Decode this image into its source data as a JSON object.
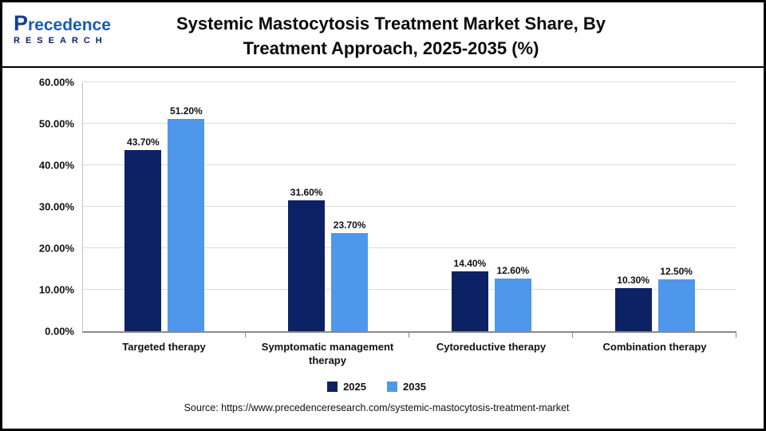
{
  "logo": {
    "name": "Precedence",
    "subtitle": "RESEARCH"
  },
  "header": {
    "title": "Systemic Mastocytosis Treatment Market Share, By Treatment Approach, 2025-2035 (%)"
  },
  "chart_data": {
    "type": "bar",
    "title": "Systemic Mastocytosis Treatment Market Share, By Treatment Approach, 2025-2035 (%)",
    "categories": [
      "Targeted therapy",
      "Symptomatic management therapy",
      "Cytoreductive therapy",
      "Combination therapy"
    ],
    "series": [
      {
        "name": "2025",
        "color": "#0d2264",
        "values": [
          43.7,
          31.6,
          14.4,
          10.3
        ]
      },
      {
        "name": "2035",
        "color": "#4f97ea",
        "values": [
          51.2,
          23.7,
          12.6,
          12.5
        ]
      }
    ],
    "xlabel": "",
    "ylabel": "",
    "ylim": [
      0,
      60
    ],
    "y_ticks": [
      "0.00%",
      "10.00%",
      "20.00%",
      "30.00%",
      "40.00%",
      "50.00%",
      "60.00%"
    ],
    "grid": true,
    "legend_position": "bottom",
    "value_label_format": "0.00%"
  },
  "footer": {
    "source": "Source: https://www.precedenceresearch.com/systemic-mastocytosis-treatment-market"
  }
}
